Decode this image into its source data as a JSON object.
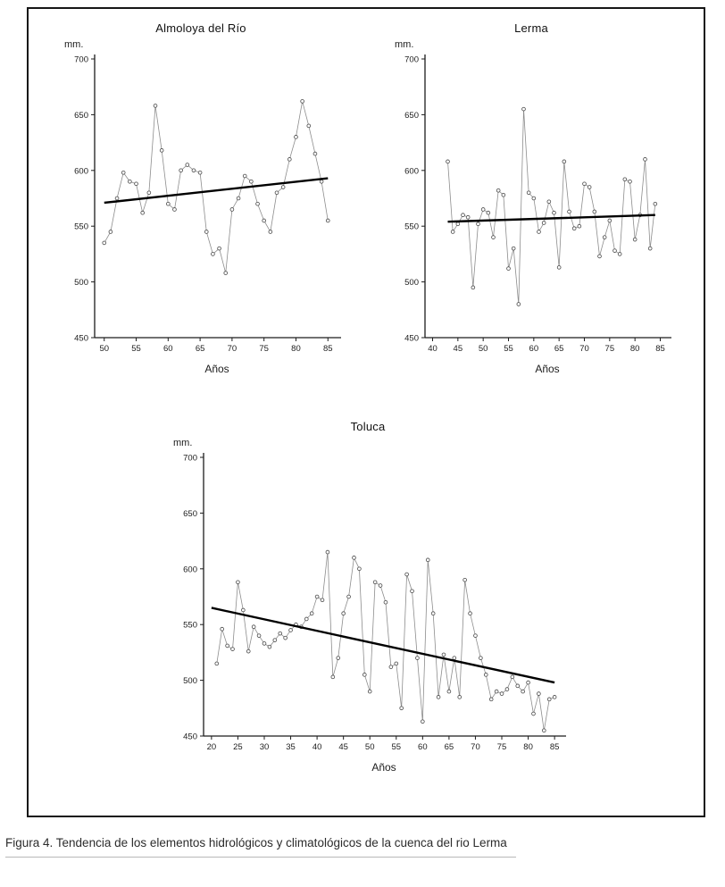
{
  "caption": "Figura 4. Tendencia de los elementos hidrológicos y climatológicos de la cuenca del rio Lerma",
  "chart_data": [
    {
      "type": "line",
      "title": "Almoloya del Río",
      "ylabel": "mm.",
      "xlabel": "Años",
      "ylim": [
        450,
        700
      ],
      "yticks": [
        450,
        500,
        550,
        600,
        650,
        700
      ],
      "xlim": [
        48.5,
        86.5
      ],
      "xticks": [
        50,
        55,
        60,
        65,
        70,
        75,
        80,
        85
      ],
      "x": [
        50,
        51,
        52,
        53,
        54,
        55,
        56,
        57,
        58,
        59,
        60,
        61,
        62,
        63,
        64,
        65,
        66,
        67,
        68,
        69,
        70,
        71,
        72,
        73,
        74,
        75,
        76,
        77,
        78,
        79,
        80,
        81,
        82,
        83,
        84,
        85
      ],
      "y": [
        535,
        545,
        575,
        598,
        590,
        588,
        562,
        580,
        658,
        618,
        570,
        565,
        600,
        605,
        600,
        598,
        545,
        525,
        530,
        508,
        565,
        575,
        595,
        590,
        570,
        555,
        545,
        580,
        585,
        610,
        630,
        662,
        640,
        615,
        590,
        555
      ],
      "trend": {
        "x": [
          50,
          85
        ],
        "y": [
          571,
          593
        ]
      },
      "legend": "none",
      "grid": false
    },
    {
      "type": "line",
      "title": "Lerma",
      "ylabel": "mm.",
      "xlabel": "Años",
      "ylim": [
        450,
        700
      ],
      "yticks": [
        450,
        500,
        550,
        600,
        650,
        700
      ],
      "xlim": [
        38.5,
        86.5
      ],
      "xticks": [
        40,
        45,
        50,
        55,
        60,
        65,
        70,
        75,
        80,
        85
      ],
      "x": [
        43,
        44,
        45,
        46,
        47,
        48,
        49,
        50,
        51,
        52,
        53,
        54,
        55,
        56,
        57,
        58,
        59,
        60,
        61,
        62,
        63,
        64,
        65,
        66,
        67,
        68,
        69,
        70,
        71,
        72,
        73,
        74,
        75,
        76,
        77,
        78,
        79,
        80,
        81,
        82,
        83,
        84
      ],
      "y": [
        608,
        545,
        552,
        560,
        558,
        495,
        552,
        565,
        562,
        540,
        582,
        578,
        512,
        530,
        480,
        655,
        580,
        575,
        545,
        553,
        572,
        562,
        513,
        608,
        563,
        548,
        550,
        588,
        585,
        563,
        523,
        540,
        555,
        528,
        525,
        592,
        590,
        538,
        560,
        610,
        530,
        570
      ],
      "trend": {
        "x": [
          43,
          84
        ],
        "y": [
          554,
          560
        ]
      },
      "legend": "none",
      "grid": false
    },
    {
      "type": "line",
      "title": "Toluca",
      "ylabel": "mm.",
      "xlabel": "Años",
      "ylim": [
        450,
        700
      ],
      "yticks": [
        450,
        500,
        550,
        600,
        650,
        700
      ],
      "xlim": [
        18.5,
        86.5
      ],
      "xticks": [
        20,
        25,
        30,
        35,
        40,
        45,
        50,
        55,
        60,
        65,
        70,
        75,
        80,
        85
      ],
      "x": [
        21,
        22,
        23,
        24,
        25,
        26,
        27,
        28,
        29,
        30,
        31,
        32,
        33,
        34,
        35,
        36,
        37,
        38,
        39,
        40,
        41,
        42,
        43,
        44,
        45,
        46,
        47,
        48,
        49,
        50,
        51,
        52,
        53,
        54,
        55,
        56,
        57,
        58,
        59,
        60,
        61,
        62,
        63,
        64,
        65,
        66,
        67,
        68,
        69,
        70,
        71,
        72,
        73,
        74,
        75,
        76,
        77,
        78,
        79,
        80,
        81,
        82,
        83,
        84,
        85
      ],
      "y": [
        515,
        546,
        531,
        528,
        588,
        563,
        526,
        548,
        540,
        533,
        530,
        536,
        542,
        538,
        545,
        550,
        548,
        555,
        560,
        575,
        572,
        615,
        503,
        520,
        560,
        575,
        610,
        600,
        505,
        490,
        588,
        585,
        570,
        512,
        515,
        475,
        595,
        580,
        520,
        463,
        608,
        560,
        485,
        523,
        490,
        520,
        485,
        590,
        560,
        540,
        520,
        505,
        483,
        490,
        488,
        492,
        503,
        495,
        490,
        498,
        470,
        488,
        455,
        483,
        485
      ],
      "trend": {
        "x": [
          20,
          85
        ],
        "y": [
          565,
          498
        ]
      },
      "legend": "none",
      "grid": false
    }
  ]
}
